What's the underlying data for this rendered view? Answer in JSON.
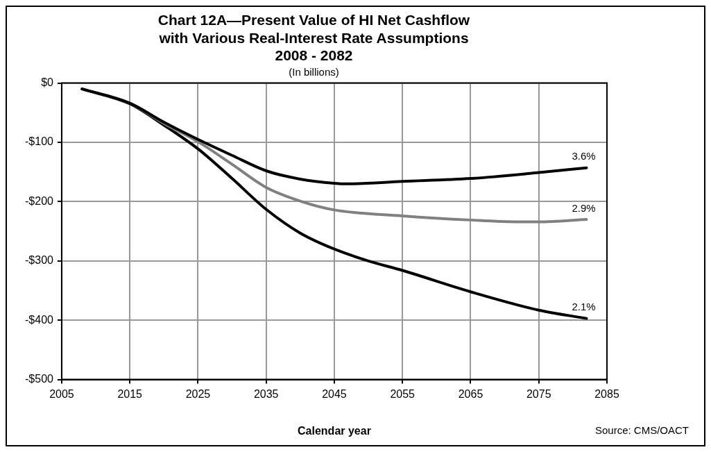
{
  "chart_data": {
    "type": "line",
    "title": "Chart 12A—Present Value of HI Net Cashflow\nwith Various Real-Interest Rate Assumptions\n2008 - 2082",
    "subtitle": "(In billions)",
    "xlabel": "Calendar year",
    "annotations": [
      "Source: CMS/OACT"
    ],
    "xlim": [
      2005,
      2085
    ],
    "xticks": [
      2005,
      2015,
      2025,
      2035,
      2045,
      2055,
      2065,
      2075,
      2085
    ],
    "ylim": [
      -500,
      0
    ],
    "yticks": [
      {
        "value": -500,
        "label": "-$500"
      },
      {
        "value": -400,
        "label": "-$400"
      },
      {
        "value": -300,
        "label": "-$300"
      },
      {
        "value": -200,
        "label": "-$200"
      },
      {
        "value": -100,
        "label": "-$100"
      },
      {
        "value": 0,
        "label": "$0"
      }
    ],
    "grid": true,
    "legend": false,
    "marker": "none",
    "line_style": "solid",
    "series": [
      {
        "name": "3.6%",
        "color": "#000000",
        "x": [
          2008,
          2015,
          2020,
          2025,
          2030,
          2035,
          2040,
          2045,
          2047,
          2055,
          2065,
          2075,
          2082
        ],
        "values": [
          -10,
          -34,
          -66,
          -95,
          -122,
          -148,
          -162,
          -169,
          -170,
          -166,
          -161,
          -151,
          -143
        ]
      },
      {
        "name": "2.9%",
        "color": "#808080",
        "x": [
          2008,
          2015,
          2020,
          2025,
          2030,
          2035,
          2040,
          2045,
          2055,
          2065,
          2072,
          2075,
          2082
        ],
        "values": [
          -10,
          -34,
          -68,
          -99,
          -137,
          -176,
          -199,
          -214,
          -224,
          -231,
          -234,
          -234,
          -230
        ]
      },
      {
        "name": "2.1%",
        "color": "#000000",
        "x": [
          2008,
          2015,
          2020,
          2025,
          2030,
          2035,
          2040,
          2045,
          2050,
          2055,
          2065,
          2075,
          2082
        ],
        "values": [
          -10,
          -35,
          -71,
          -111,
          -161,
          -213,
          -253,
          -280,
          -300,
          -316,
          -352,
          -383,
          -397
        ]
      }
    ]
  }
}
